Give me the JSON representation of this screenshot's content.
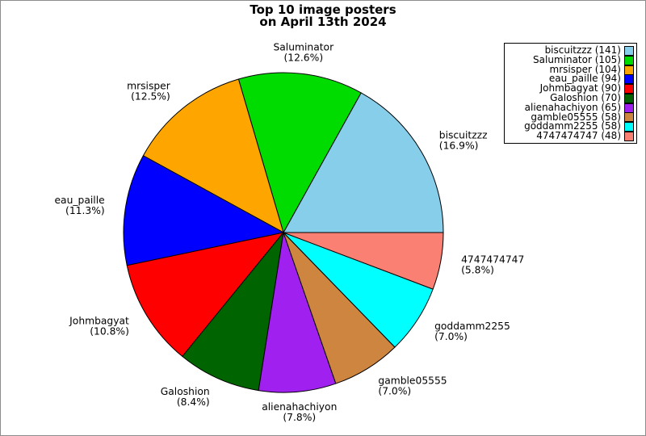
{
  "figure": {
    "title_line1": "Top 10 image posters",
    "title_line2": "on April 13th 2024",
    "background": "#ffffff",
    "border_color": "#8c8c8c"
  },
  "chart_data": {
    "type": "pie",
    "title": "Top 10 image posters on April 13th 2024",
    "start_angle_deg": 0,
    "direction": "counterclockwise",
    "edge_color": "#000000",
    "label_text_color": "#000000",
    "legend_position": "upper right",
    "legend_marker_side": "right",
    "slices": [
      {
        "label": "biscuitzzz",
        "count": 141,
        "pct": 16.9,
        "color": "#87CEEB"
      },
      {
        "label": "Saluminator",
        "count": 105,
        "pct": 12.6,
        "color": "#00DC00"
      },
      {
        "label": "mrsisper",
        "count": 104,
        "pct": 12.5,
        "color": "#FFA500"
      },
      {
        "label": "eau_paille",
        "count": 94,
        "pct": 11.3,
        "color": "#0000FF"
      },
      {
        "label": "Johmbagyat",
        "count": 90,
        "pct": 10.8,
        "color": "#FF0000"
      },
      {
        "label": "Galoshion",
        "count": 70,
        "pct": 8.4,
        "color": "#006400"
      },
      {
        "label": "alienahachiyon",
        "count": 65,
        "pct": 7.8,
        "color": "#A020F0"
      },
      {
        "label": "gamble05555",
        "count": 58,
        "pct": 7.0,
        "color": "#CD853F"
      },
      {
        "label": "goddamm2255",
        "count": 58,
        "pct": 7.0,
        "color": "#00FFFF"
      },
      {
        "label": "4747474747",
        "count": 48,
        "pct": 5.8,
        "color": "#F98072"
      }
    ],
    "legend_entries": [
      "biscuitzzz (141)",
      "Saluminator (105)",
      "mrsisper (104)",
      "eau_paille (94)",
      "Johmbagyat (90)",
      "Galoshion (70)",
      "alienahachiyon (65)",
      "gamble05555 (58)",
      "goddamm2255 (58)",
      "4747474747 (48)"
    ]
  }
}
